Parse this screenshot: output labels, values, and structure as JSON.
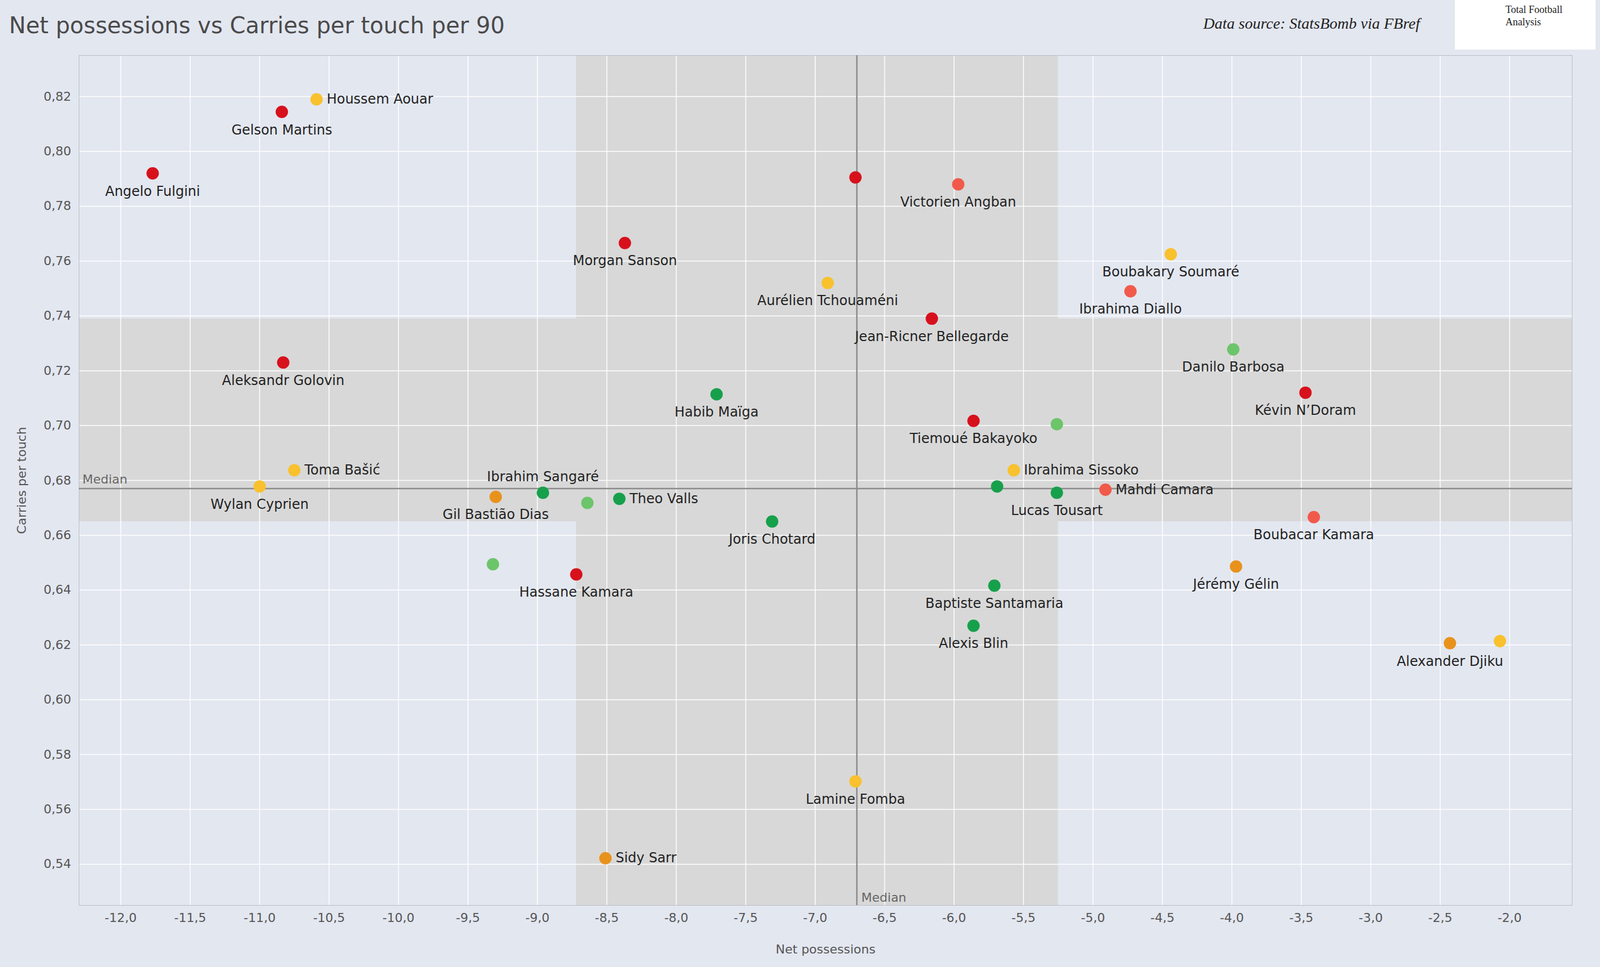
{
  "chart_data": {
    "type": "scatter",
    "title": "Net possessions vs Carries per touch per 90",
    "source": "Data source: StatsBomb via FBref",
    "logo": "Total Football Analysis",
    "x_label": "Net possessions",
    "y_label": "Carries per touch",
    "median_label": "Median",
    "x_median": -6.7,
    "y_median": 0.677,
    "x_band": [
      -8.72,
      -5.25
    ],
    "y_band": [
      0.665,
      0.739
    ],
    "x": [
      -11.77,
      -10.84,
      -10.59,
      -6.71,
      -5.97,
      -8.37,
      -6.91,
      -6.16,
      -4.44,
      -4.73,
      -3.99,
      -3.47,
      -10.83,
      -7.71,
      -5.86,
      -5.26,
      -10.75,
      -11.0,
      -9.3,
      -8.96,
      -8.64,
      -8.41,
      -7.31,
      -5.57,
      -5.69,
      -5.26,
      -4.91,
      -3.41,
      -9.32,
      -8.72,
      -5.71,
      -5.86,
      -3.97,
      -2.43,
      -2.07,
      -6.71,
      -8.51
    ],
    "y": [
      0.792,
      0.8144,
      0.819,
      0.7905,
      0.788,
      0.7666,
      0.752,
      0.739,
      0.7625,
      0.749,
      0.7278,
      0.712,
      0.723,
      0.7114,
      0.7017,
      0.7005,
      0.6837,
      0.6778,
      0.674,
      0.6755,
      0.6718,
      0.6733,
      0.665,
      0.6837,
      0.6778,
      0.6755,
      0.6766,
      0.6666,
      0.6494,
      0.6457,
      0.6416,
      0.627,
      0.6486,
      0.6206,
      0.6214,
      0.5702,
      0.5422
    ],
    "labels": [
      "Angelo Fulgini",
      "Gelson Martins",
      "Houssem Aouar",
      null,
      "Victorien Angban",
      "Morgan Sanson",
      "Aurélien Tchouaméni",
      "Jean-Ricner Bellegarde",
      "Boubakary Soumaré",
      "Ibrahima Diallo",
      "Danilo Barbosa",
      "Kévin N’Doram",
      "Aleksandr Golovin",
      "Habib Maïga",
      "Tiemoué Bakayoko",
      null,
      "Toma Bašić",
      "Wylan Cyprien",
      "Gil Bastião Dias",
      "Ibrahim Sangaré",
      null,
      "Theo Valls",
      "Joris Chotard",
      "Ibrahima Sissoko",
      null,
      "Lucas Tousart",
      "Mahdi Camara",
      "Boubacar Kamara",
      null,
      "Hassane Kamara",
      "Baptiste Santamaria",
      "Alexis Blin",
      "Jérémy Gélin",
      "Alexander Djiku",
      null,
      "Lamine Fomba",
      "Sidy Sarr"
    ],
    "colors": [
      "#d7111c",
      "#d7111c",
      "#f8c12d",
      "#d7111c",
      "#f15a4a",
      "#d7111c",
      "#f8c12d",
      "#d7111c",
      "#f8c12d",
      "#f15a4a",
      "#6cc56a",
      "#d7111c",
      "#d7111c",
      "#17a04b",
      "#d7111c",
      "#6cc56a",
      "#f8c12d",
      "#f8c12d",
      "#e8921c",
      "#17a04b",
      "#6cc56a",
      "#17a04b",
      "#17a04b",
      "#f8c12d",
      "#17a04b",
      "#17a04b",
      "#f15a4a",
      "#f15a4a",
      "#6cc56a",
      "#d7111c",
      "#17a04b",
      "#17a04b",
      "#e8921c",
      "#e8921c",
      "#f8c12d",
      "#f8c12d",
      "#e8921c"
    ],
    "xlim": [
      -12.3,
      -1.55
    ],
    "ylim": [
      0.525,
      0.835
    ],
    "xticks": [
      {
        "value": -12.0,
        "label": "-12,0"
      },
      {
        "value": -11.5,
        "label": "-11,5"
      },
      {
        "value": -11.0,
        "label": "-11,0"
      },
      {
        "value": -10.5,
        "label": "-10,5"
      },
      {
        "value": -10.0,
        "label": "-10,0"
      },
      {
        "value": -9.5,
        "label": "-9,5"
      },
      {
        "value": -9.0,
        "label": "-9,0"
      },
      {
        "value": -8.5,
        "label": "-8,5"
      },
      {
        "value": -8.0,
        "label": "-8,0"
      },
      {
        "value": -7.5,
        "label": "-7,5"
      },
      {
        "value": -7.0,
        "label": "-7,0"
      },
      {
        "value": -6.5,
        "label": "-6,5"
      },
      {
        "value": -6.0,
        "label": "-6,0"
      },
      {
        "value": -5.5,
        "label": "-5,5"
      },
      {
        "value": -5.0,
        "label": "-5,0"
      },
      {
        "value": -4.5,
        "label": "-4,5"
      },
      {
        "value": -4.0,
        "label": "-4,0"
      },
      {
        "value": -3.5,
        "label": "-3,5"
      },
      {
        "value": -3.0,
        "label": "-3,0"
      },
      {
        "value": -2.5,
        "label": "-2,5"
      },
      {
        "value": -2.0,
        "label": "-2,0"
      }
    ],
    "yticks": [
      {
        "value": 0.54,
        "label": "0,54"
      },
      {
        "value": 0.56,
        "label": "0,56"
      },
      {
        "value": 0.58,
        "label": "0,58"
      },
      {
        "value": 0.6,
        "label": "0,60"
      },
      {
        "value": 0.62,
        "label": "0,62"
      },
      {
        "value": 0.64,
        "label": "0,64"
      },
      {
        "value": 0.66,
        "label": "0,66"
      },
      {
        "value": 0.68,
        "label": "0,68"
      },
      {
        "value": 0.7,
        "label": "0,70"
      },
      {
        "value": 0.72,
        "label": "0,72"
      },
      {
        "value": 0.74,
        "label": "0,74"
      },
      {
        "value": 0.76,
        "label": "0,76"
      },
      {
        "value": 0.78,
        "label": "0,78"
      },
      {
        "value": 0.8,
        "label": "0,80"
      },
      {
        "value": 0.82,
        "label": "0,82"
      }
    ],
    "grid": true,
    "marker": "circle"
  }
}
